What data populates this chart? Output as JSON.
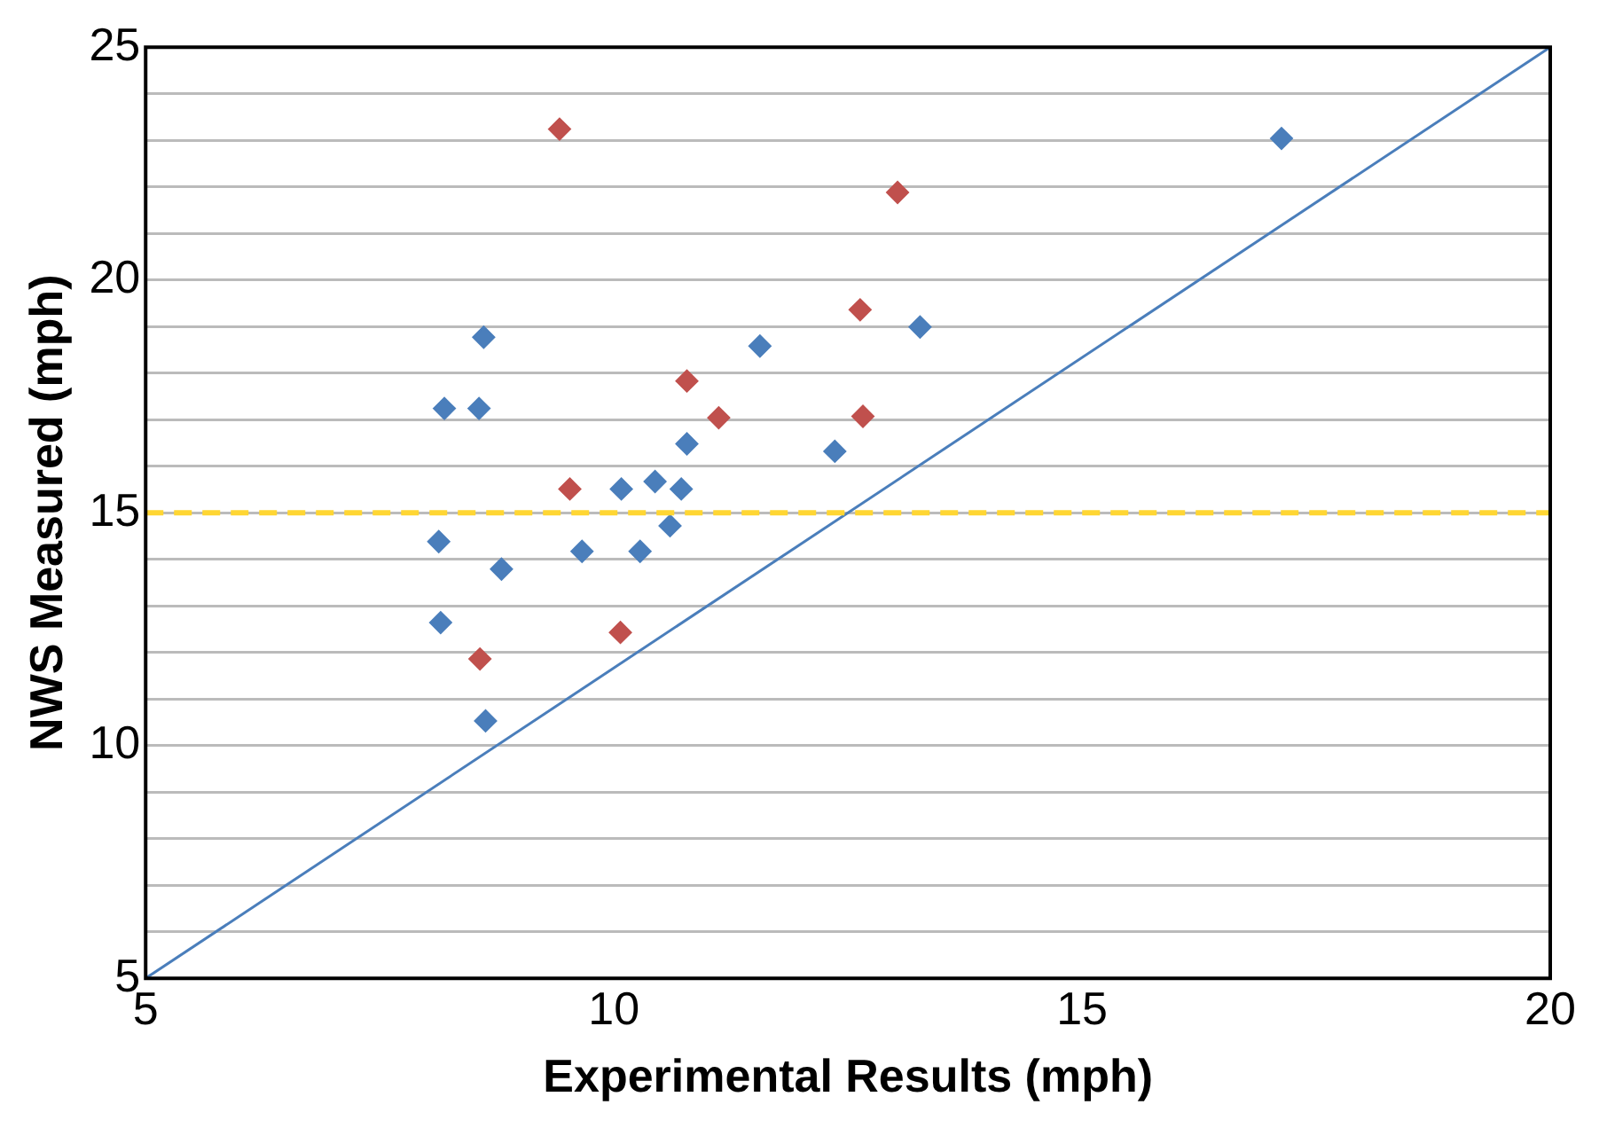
{
  "chart_data": {
    "type": "scatter",
    "xlabel": "Experimental Results (mph)",
    "ylabel": "NWS Measured (mph)",
    "xlim": [
      5,
      20
    ],
    "xticks": [
      5,
      10,
      15,
      20
    ],
    "ylim": [
      5,
      25
    ],
    "yticks": [
      5,
      {
        "value": 6,
        "label": null
      },
      {
        "value": 7,
        "label": null
      },
      {
        "value": 8,
        "label": null
      },
      {
        "value": 9,
        "label": null
      },
      10,
      {
        "value": 11,
        "label": null
      },
      {
        "value": 12,
        "label": null
      },
      {
        "value": 13,
        "label": null
      },
      {
        "value": 14,
        "label": null
      },
      15,
      {
        "value": 16,
        "label": null
      },
      {
        "value": 17,
        "label": null
      },
      {
        "value": 18,
        "label": null
      },
      {
        "value": 19,
        "label": null
      },
      20,
      {
        "value": 21,
        "label": null
      },
      {
        "value": 22,
        "label": null
      },
      {
        "value": 23,
        "label": null
      },
      {
        "value": 24,
        "label": null
      },
      25
    ],
    "grid": "y",
    "legend": false,
    "marker": "diamond",
    "series": [
      {
        "color": "#4a7ebb",
        "x": [
          8.61,
          8.19,
          8.56,
          11.56,
          13.27,
          10.78,
          12.36,
          10.08,
          10.44,
          10.72,
          10.6,
          8.13,
          9.66,
          10.28,
          8.8,
          8.15,
          8.63,
          17.13
        ],
        "values": [
          18.77,
          17.24,
          17.24,
          18.58,
          18.99,
          16.48,
          16.32,
          15.51,
          15.67,
          15.51,
          14.72,
          14.38,
          14.17,
          14.17,
          13.79,
          12.64,
          10.53,
          23.04
        ]
      },
      {
        "color": "#c0504d",
        "x": [
          12.63,
          10.78,
          11.12,
          12.66,
          9.53,
          10.07,
          8.57,
          13.03,
          9.42
        ],
        "values": [
          19.36,
          17.83,
          17.04,
          17.07,
          15.51,
          12.43,
          11.86,
          21.88,
          23.24
        ]
      },
      {
        "type": "line",
        "color": "#4a7ebb",
        "marker": "none",
        "x": [
          5,
          20
        ],
        "values": [
          5,
          25
        ]
      }
    ],
    "ref_lines": [
      {
        "axis": "y",
        "value": 15,
        "color": "#ffd633",
        "line_style": "dashed"
      }
    ]
  }
}
